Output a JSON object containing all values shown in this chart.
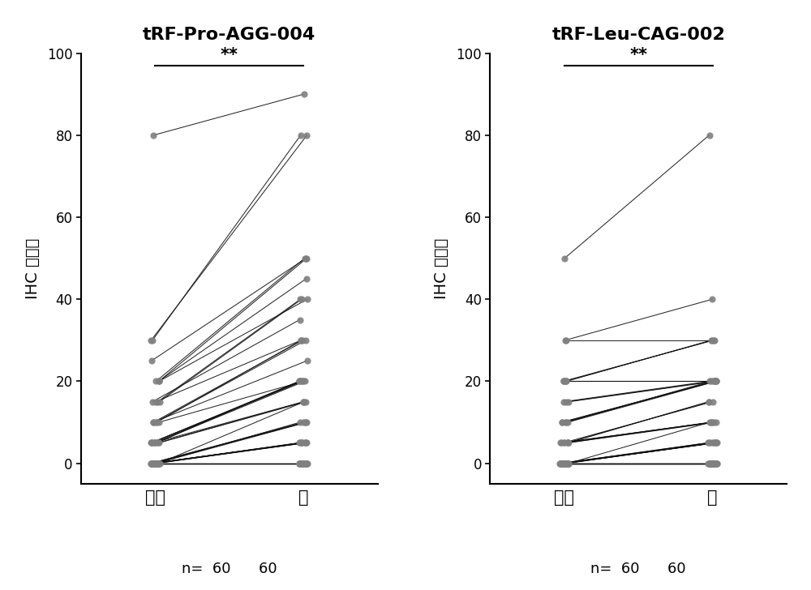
{
  "panel1_title": "tRF-Pro-AGG-004",
  "panel2_title": "tRF-Leu-CAG-002",
  "ylabel": "IHC 阳性率",
  "xlabel1": "癌旁",
  "xlabel2": "癌",
  "n_label": "n=",
  "n_val1": "60",
  "n_val2": "60",
  "ylim": [
    -5,
    100
  ],
  "yticks": [
    0,
    20,
    40,
    60,
    80,
    100
  ],
  "sig_text": "**",
  "background_color": "#ffffff",
  "line_color": "#111111",
  "dot_color": "#808080",
  "panel1_para": [
    0,
    0,
    0,
    0,
    0,
    0,
    0,
    0,
    0,
    0,
    0,
    0,
    0,
    0,
    0,
    0,
    0,
    0,
    0,
    0,
    0,
    0,
    0,
    0,
    0,
    0,
    0,
    0,
    0,
    0,
    0,
    0,
    0,
    0,
    5,
    5,
    5,
    5,
    5,
    5,
    5,
    5,
    5,
    10,
    10,
    10,
    10,
    10,
    15,
    15,
    15,
    15,
    20,
    20,
    20,
    20,
    25,
    30,
    30,
    80
  ],
  "panel1_cancer": [
    0,
    0,
    0,
    0,
    0,
    0,
    0,
    0,
    0,
    0,
    0,
    0,
    0,
    0,
    0,
    0,
    0,
    0,
    0,
    5,
    5,
    5,
    5,
    5,
    5,
    5,
    5,
    5,
    10,
    10,
    10,
    10,
    10,
    15,
    15,
    15,
    15,
    20,
    20,
    20,
    20,
    20,
    20,
    20,
    25,
    30,
    30,
    30,
    30,
    35,
    40,
    40,
    40,
    45,
    50,
    50,
    50,
    80,
    80,
    90
  ],
  "panel2_para": [
    0,
    0,
    0,
    0,
    0,
    0,
    0,
    0,
    0,
    0,
    0,
    0,
    0,
    0,
    0,
    0,
    0,
    0,
    0,
    0,
    0,
    0,
    0,
    0,
    0,
    0,
    0,
    0,
    0,
    0,
    0,
    0,
    0,
    0,
    0,
    5,
    5,
    5,
    5,
    5,
    5,
    5,
    5,
    10,
    10,
    10,
    10,
    10,
    15,
    15,
    15,
    20,
    20,
    20,
    20,
    20,
    20,
    30,
    30,
    50
  ],
  "panel2_cancer": [
    0,
    0,
    0,
    0,
    0,
    0,
    0,
    0,
    0,
    0,
    0,
    0,
    0,
    0,
    0,
    0,
    0,
    0,
    0,
    0,
    0,
    0,
    0,
    0,
    0,
    5,
    5,
    5,
    5,
    5,
    5,
    5,
    5,
    5,
    10,
    10,
    10,
    10,
    10,
    10,
    15,
    15,
    15,
    20,
    20,
    20,
    20,
    20,
    20,
    20,
    20,
    20,
    20,
    20,
    30,
    30,
    30,
    30,
    40,
    80
  ]
}
